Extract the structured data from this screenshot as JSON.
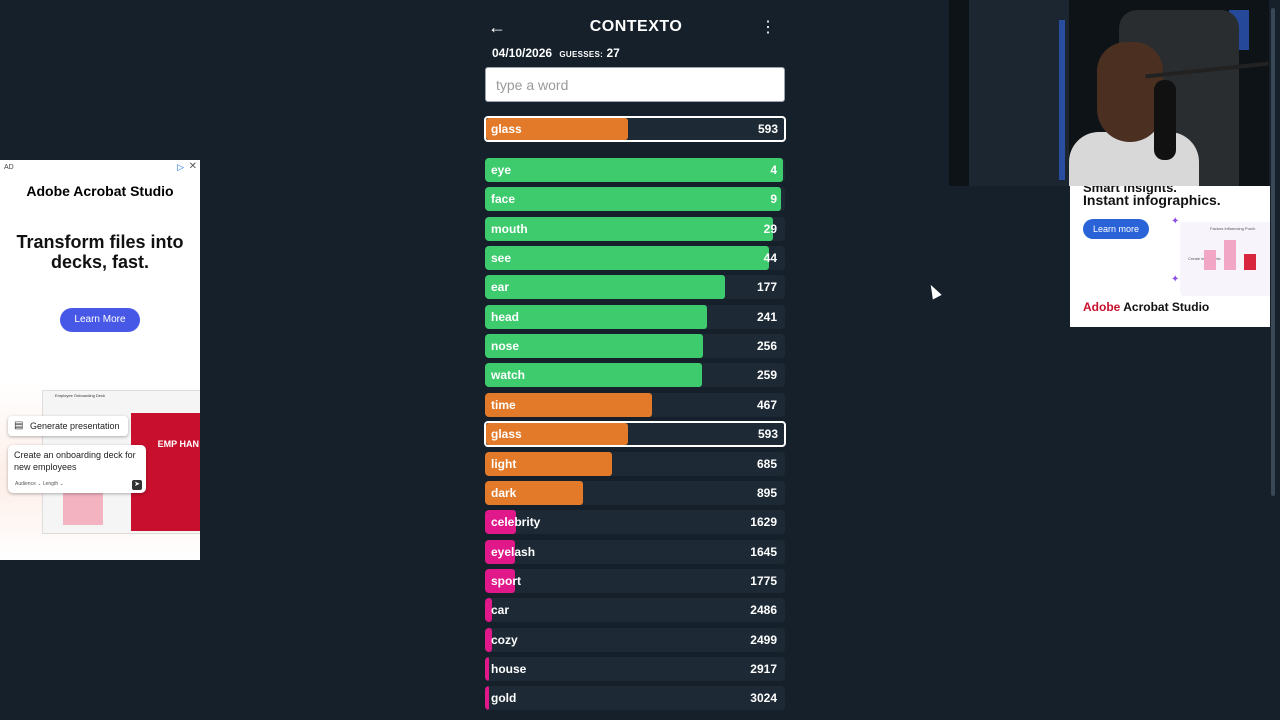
{
  "game": {
    "title": "CONTEXTO",
    "date": "04/10/2026",
    "guesses_label": "GUESSES:",
    "guesses_count": "27",
    "search_placeholder": "type a word",
    "back_icon": "arrow-left-icon",
    "menu_icon": "more-vert-icon",
    "last_guess": {
      "word": "glass",
      "rank": "593",
      "color": "#e27a2a",
      "fill_pct": 47.5
    },
    "colors": {
      "green": "#3ecb6e",
      "orange": "#e27a2a",
      "pink": "#e0188a",
      "row_bg": "#1d2a35",
      "page_bg": "#15202b"
    },
    "guesses": [
      {
        "word": "eye",
        "rank": "4",
        "color": "#3ecb6e",
        "fill_pct": 99.3
      },
      {
        "word": "face",
        "rank": "9",
        "color": "#3ecb6e",
        "fill_pct": 98.7
      },
      {
        "word": "mouth",
        "rank": "29",
        "color": "#3ecb6e",
        "fill_pct": 96
      },
      {
        "word": "see",
        "rank": "44",
        "color": "#3ecb6e",
        "fill_pct": 94.7
      },
      {
        "word": "ear",
        "rank": "177",
        "color": "#3ecb6e",
        "fill_pct": 80
      },
      {
        "word": "head",
        "rank": "241",
        "color": "#3ecb6e",
        "fill_pct": 74
      },
      {
        "word": "nose",
        "rank": "256",
        "color": "#3ecb6e",
        "fill_pct": 72.7
      },
      {
        "word": "watch",
        "rank": "259",
        "color": "#3ecb6e",
        "fill_pct": 72.3
      },
      {
        "word": "time",
        "rank": "467",
        "color": "#e27a2a",
        "fill_pct": 55.7
      },
      {
        "word": "glass",
        "rank": "593",
        "color": "#e27a2a",
        "fill_pct": 47.5,
        "highlight": true
      },
      {
        "word": "light",
        "rank": "685",
        "color": "#e27a2a",
        "fill_pct": 42.3
      },
      {
        "word": "dark",
        "rank": "895",
        "color": "#e27a2a",
        "fill_pct": 32.7
      },
      {
        "word": "celebrity",
        "rank": "1629",
        "color": "#e0188a",
        "fill_pct": 10.3
      },
      {
        "word": "eyelash",
        "rank": "1645",
        "color": "#e0188a",
        "fill_pct": 10
      },
      {
        "word": "sport",
        "rank": "1775",
        "color": "#e0188a",
        "fill_pct": 10
      },
      {
        "word": "car",
        "rank": "2486",
        "color": "#e0188a",
        "fill_pct": 2.3
      },
      {
        "word": "cozy",
        "rank": "2499",
        "color": "#e0188a",
        "fill_pct": 2.3
      },
      {
        "word": "house",
        "rank": "2917",
        "color": "#e0188a",
        "fill_pct": 1.3
      },
      {
        "word": "gold",
        "rank": "3024",
        "color": "#e0188a",
        "fill_pct": 1.3
      }
    ]
  },
  "left_ad": {
    "tag": "AD",
    "brand": "Adobe Acrobat Studio",
    "headline": "Transform files into decks, fast.",
    "cta": "Learn More",
    "chip": "Generate presentation",
    "prompt": "Create an onboarding deck for new employees",
    "prompt_opts": "Audience ⌄  Length ⌄",
    "preview_title": "Employee Onboarding Deck",
    "preview_red_text": "EMP HAN"
  },
  "right_ad": {
    "partial_text": "Smart insights.",
    "headline": "Instant infographics.",
    "cta": "Learn more",
    "brand_a": "Adobe",
    "brand_b": " Acrobat Studio",
    "panel_title": "Factors Influencing Purch",
    "panel_create": "Create infographic"
  }
}
